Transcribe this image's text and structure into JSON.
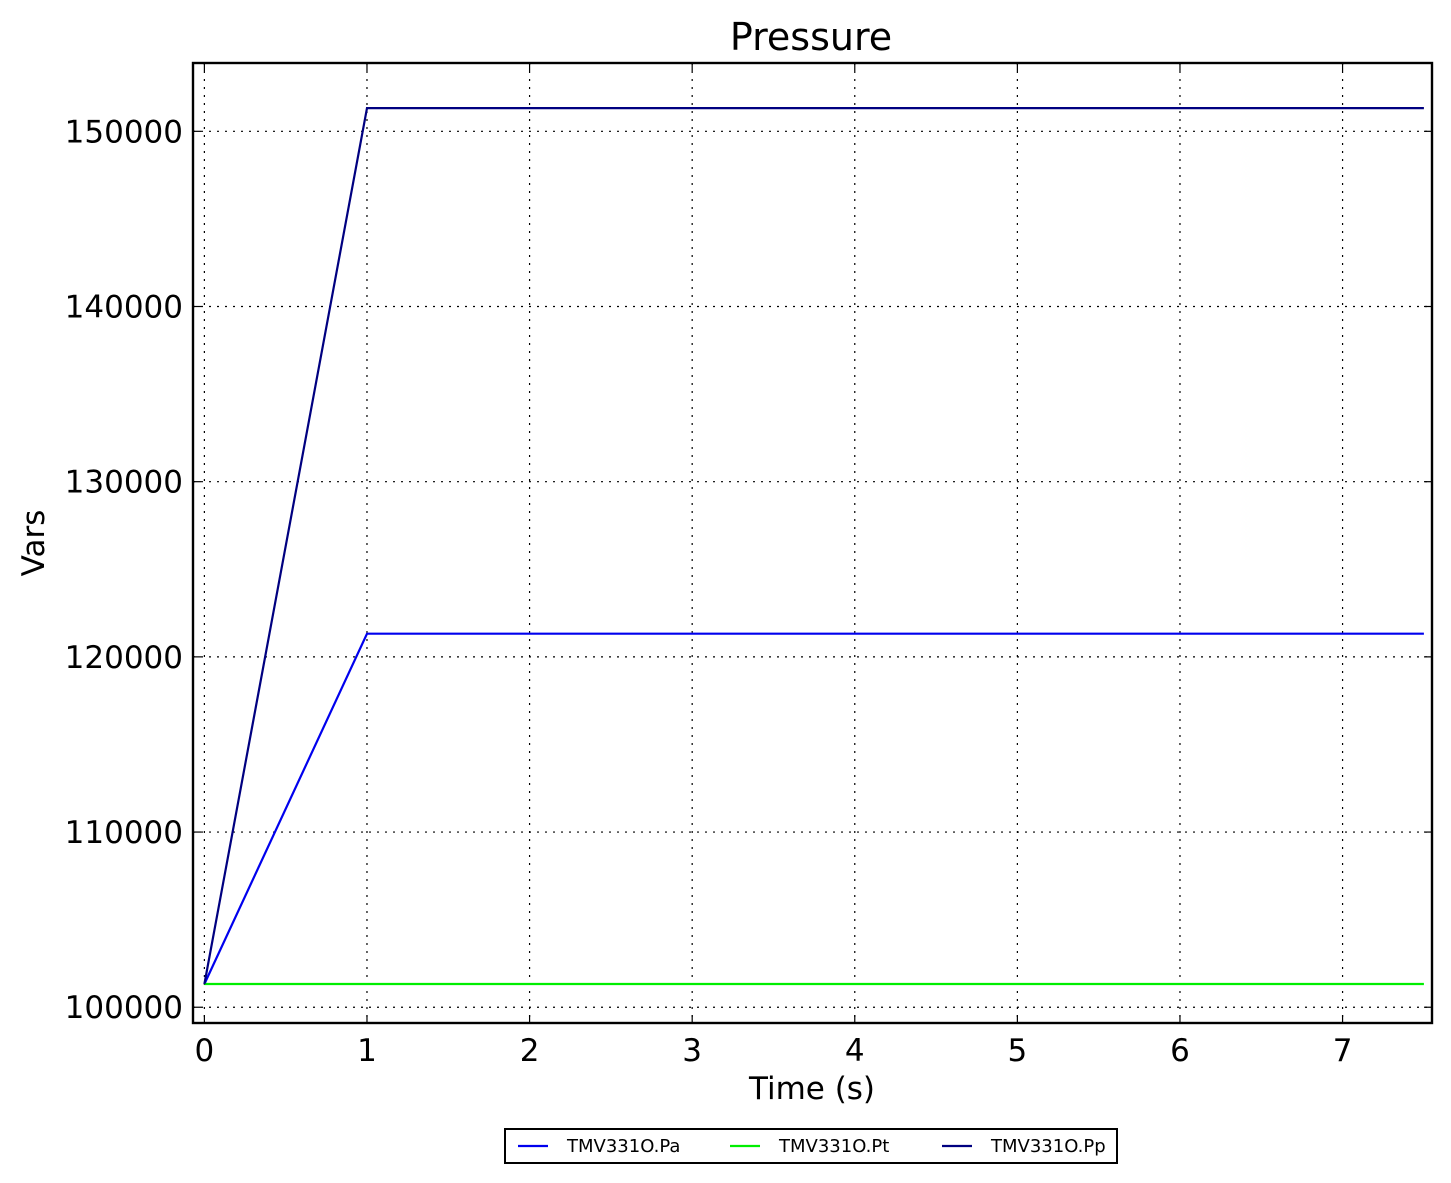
{
  "chart_data": {
    "type": "line",
    "title": "Pressure",
    "xlabel": "Time (s)",
    "ylabel": "Vars",
    "xlim": [
      -0.07,
      7.55
    ],
    "ylim": [
      99100,
      153900
    ],
    "xticks": [
      0,
      1,
      2,
      3,
      4,
      5,
      6,
      7
    ],
    "xtick_labels": [
      "0",
      "1",
      "2",
      "3",
      "4",
      "5",
      "6",
      "7"
    ],
    "yticks": [
      100000,
      110000,
      120000,
      130000,
      140000,
      150000
    ],
    "ytick_labels": [
      "100000",
      "110000",
      "120000",
      "130000",
      "140000",
      "150000"
    ],
    "grid": true,
    "legend_position": "bottom-center",
    "series": [
      {
        "name": "TMV331O.Pa",
        "color": "#0000ee",
        "x": [
          0,
          1,
          7.5
        ],
        "y": [
          101325,
          121325,
          121325
        ]
      },
      {
        "name": "TMV331O.Pt",
        "color": "#00ee00",
        "x": [
          0,
          1,
          7.5
        ],
        "y": [
          101325,
          101325,
          101325
        ]
      },
      {
        "name": "TMV331O.Pp",
        "color": "#000080",
        "x": [
          0,
          1,
          7.5
        ],
        "y": [
          101325,
          151325,
          151325
        ]
      }
    ]
  }
}
